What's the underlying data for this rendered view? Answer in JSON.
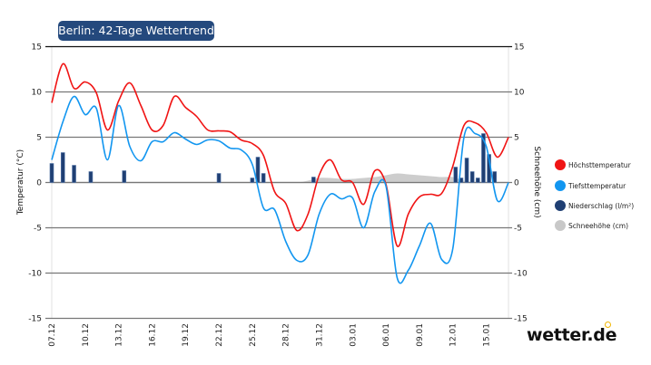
{
  "title": "Berlin: 42-Tage Wettertrend",
  "logo": "wetter.de",
  "legend": [
    {
      "label": "Höchsttemperatur",
      "color": "#f01414"
    },
    {
      "label": "Tiefsttemperatur",
      "color": "#1296f0"
    },
    {
      "label": "Niederschlag (l/m²)",
      "color": "#1f3f73"
    },
    {
      "label": "Schneehöhe (cm)",
      "color": "#c8c8c8"
    }
  ],
  "chart_data": {
    "type": "line",
    "title": "Berlin: 42-Tage Wettertrend",
    "ylabel": "Temperatur (°C)",
    "y2label": "Schneehöhe (cm)",
    "ylim": [
      -15,
      15
    ],
    "y2lim": [
      -15,
      15
    ],
    "yticks": [
      "15",
      "10",
      "5",
      "0",
      "-5",
      "-10",
      "-15"
    ],
    "xticks": [
      "07.12",
      "10.12",
      "13.12",
      "16.12",
      "19.12",
      "22.12",
      "25.12",
      "28.12",
      "31.12",
      "03.01",
      "06.01",
      "09.01",
      "12.01",
      "15.01"
    ],
    "grid": true,
    "legend_position": "right",
    "x": [
      "07.12",
      "08.12",
      "09.12",
      "10.12",
      "11.12",
      "12.12",
      "13.12",
      "14.12",
      "15.12",
      "16.12",
      "17.12",
      "18.12",
      "19.12",
      "20.12",
      "21.12",
      "22.12",
      "23.12",
      "24.12",
      "25.12",
      "26.12",
      "27.12",
      "28.12",
      "29.12",
      "30.12",
      "31.12",
      "01.01",
      "02.01",
      "03.01",
      "04.01",
      "05.01",
      "06.01",
      "07.01",
      "08.01",
      "09.01",
      "10.01",
      "11.01",
      "12.01",
      "13.01",
      "14.01",
      "15.01",
      "16.01",
      "17.01"
    ],
    "series": [
      {
        "name": "Höchsttemperatur",
        "color": "#f01414",
        "values": [
          8.8,
          13.1,
          10.4,
          11.1,
          9.9,
          5.8,
          9.0,
          11.0,
          8.5,
          5.8,
          6.3,
          9.5,
          8.3,
          7.3,
          5.8,
          5.7,
          5.6,
          4.7,
          4.3,
          3.0,
          -1.0,
          -2.3,
          -5.3,
          -3.5,
          0.8,
          2.5,
          0.3,
          0.0,
          -2.4,
          1.3,
          -0.2,
          -7.0,
          -3.5,
          -1.6,
          -1.3,
          -1.2,
          1.8,
          6.3,
          6.6,
          5.5,
          2.8,
          5.0
        ]
      },
      {
        "name": "Tiefsttemperatur",
        "color": "#1296f0",
        "values": [
          2.5,
          6.7,
          9.5,
          7.5,
          8.2,
          2.5,
          8.5,
          4.0,
          2.4,
          4.5,
          4.5,
          5.5,
          4.8,
          4.2,
          4.7,
          4.6,
          3.8,
          3.6,
          2.0,
          -2.8,
          -3.0,
          -6.5,
          -8.6,
          -8.0,
          -3.5,
          -1.3,
          -1.8,
          -1.7,
          -5.0,
          -1.0,
          -0.4,
          -10.5,
          -9.7,
          -7.0,
          -4.5,
          -8.5,
          -7.3,
          5.0,
          5.4,
          4.0,
          -2.0,
          0.0
        ]
      },
      {
        "name": "Schneehöhe (cm)",
        "color": "#c8c8c8",
        "type": "area",
        "values": [
          0,
          0,
          0,
          0,
          0,
          0,
          0,
          0,
          0,
          0,
          0,
          0,
          0,
          0,
          0,
          0,
          0,
          0,
          0,
          0,
          0,
          0,
          0,
          0.2,
          0.5,
          0.5,
          0.4,
          0.4,
          0.5,
          0.6,
          0.8,
          1.0,
          0.9,
          0.8,
          0.7,
          0.6,
          0.6,
          0.2,
          0,
          0,
          0,
          0
        ]
      },
      {
        "name": "Niederschlag (l/m²)",
        "color": "#1f3f73",
        "type": "bar",
        "points": [
          {
            "x": "07.12 00:00",
            "y": 2.1
          },
          {
            "x": "08.12 00:00",
            "y": 3.3
          },
          {
            "x": "09.12 00:00",
            "y": 1.9
          },
          {
            "x": "10.12 12:00",
            "y": 1.2
          },
          {
            "x": "13.12 12:00",
            "y": 1.3
          },
          {
            "x": "22.12 00:00",
            "y": 1.0
          },
          {
            "x": "25.12 00:00",
            "y": 0.5
          },
          {
            "x": "25.12 12:00",
            "y": 2.8
          },
          {
            "x": "26.12 00:00",
            "y": 1.0
          },
          {
            "x": "30.12 12:00",
            "y": 0.6
          },
          {
            "x": "12.01 06:00",
            "y": 1.7
          },
          {
            "x": "12.01 18:00",
            "y": 0.5
          },
          {
            "x": "13.01 06:00",
            "y": 2.7
          },
          {
            "x": "13.01 18:00",
            "y": 1.2
          },
          {
            "x": "14.01 06:00",
            "y": 0.5
          },
          {
            "x": "14.01 18:00",
            "y": 5.4
          },
          {
            "x": "15.01 06:00",
            "y": 3.1
          },
          {
            "x": "15.01 18:00",
            "y": 1.2
          }
        ]
      }
    ]
  }
}
